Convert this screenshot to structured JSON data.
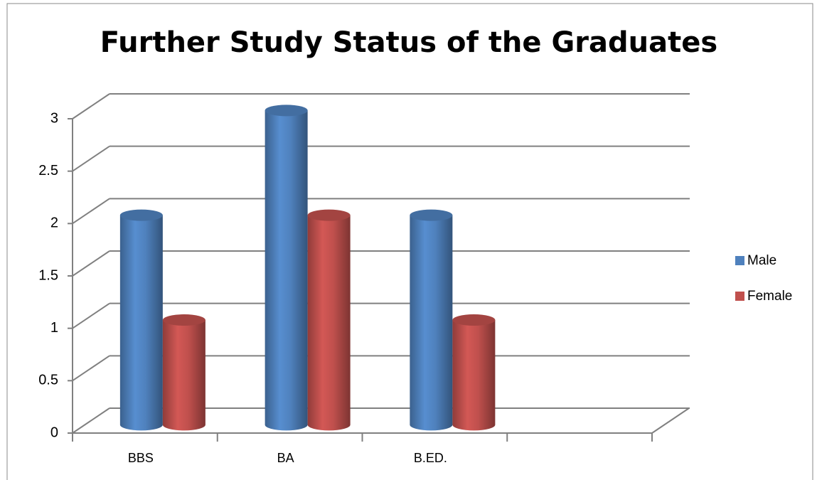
{
  "chart_data": {
    "type": "bar3d",
    "title": "Further Study Status of the Graduates",
    "categories": [
      "BBS",
      "BA",
      "B.ED.",
      null
    ],
    "series": [
      {
        "name": "Male",
        "color": "#4f81bd",
        "values": [
          2,
          3,
          2,
          null
        ]
      },
      {
        "name": "Female",
        "color": "#c0504d",
        "values": [
          1,
          2,
          1,
          null
        ]
      }
    ],
    "ylim": [
      0,
      3
    ],
    "yticks": [
      0,
      0.5,
      1,
      1.5,
      2,
      2.5,
      3
    ],
    "grid": true,
    "legend": "right"
  }
}
